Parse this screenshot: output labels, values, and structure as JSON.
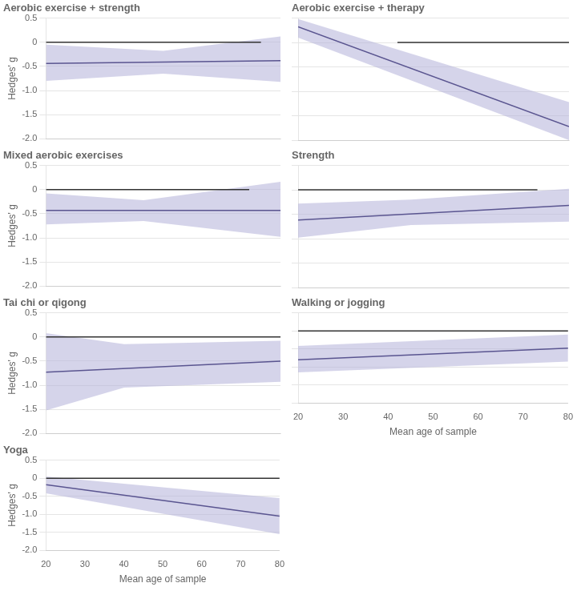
{
  "chart_data": [
    {
      "type": "line",
      "title": "Aerobic exercise + strength",
      "ylabel": "Hedges' g",
      "xlim": [
        20,
        80
      ],
      "ylim": [
        -2.0,
        0.5
      ],
      "xticks": [
        20,
        30,
        40,
        50,
        60,
        70,
        80
      ],
      "yticks": [
        0.5,
        0,
        -0.5,
        {
          "value": -1.0,
          "label": "-1.0"
        },
        -1.5,
        {
          "value": -2.0,
          "label": "-2.0"
        }
      ],
      "grid": "y",
      "tick_labels": "y",
      "series": [
        {
          "type": "band",
          "color": "#b3b0d8",
          "x": [
            20,
            50,
            80
          ],
          "upper": [
            -0.05,
            -0.18,
            0.12
          ],
          "lower": [
            -0.8,
            -0.65,
            -0.82
          ]
        },
        {
          "type": "line",
          "color": "#333333",
          "x": [
            20,
            75
          ],
          "values": [
            0.0,
            0.0
          ]
        },
        {
          "type": "line",
          "color": "#5a5590",
          "x": [
            20,
            80
          ],
          "values": [
            -0.44,
            -0.38
          ]
        }
      ]
    },
    {
      "type": "line",
      "title": "Aerobic exercise + therapy",
      "xlim": [
        20,
        80
      ],
      "ylim": [
        -2.0,
        0.5
      ],
      "xticks": [
        20,
        30,
        40,
        50,
        60,
        70,
        80
      ],
      "yticks": [
        0.5,
        0,
        -0.5,
        {
          "value": -1.0,
          "label": "-1.0"
        },
        -1.5,
        {
          "value": -2.0,
          "label": "-2.0"
        }
      ],
      "grid": "y",
      "tick_labels": false,
      "series": [
        {
          "type": "band",
          "color": "#b3b0d8",
          "x": [
            20,
            80
          ],
          "upper": [
            0.48,
            -1.22
          ],
          "lower": [
            0.1,
            -2.0
          ]
        },
        {
          "type": "line",
          "color": "#333333",
          "x": [
            42,
            80
          ],
          "values": [
            0.0,
            0.0
          ]
        },
        {
          "type": "line",
          "color": "#5a5590",
          "x": [
            20,
            80
          ],
          "values": [
            0.32,
            -1.72
          ]
        }
      ]
    },
    {
      "type": "line",
      "title": "Mixed aerobic exercises",
      "ylabel": "Hedges' g",
      "xlim": [
        20,
        80
      ],
      "ylim": [
        -2.0,
        0.5
      ],
      "xticks": [
        20,
        30,
        40,
        50,
        60,
        70,
        80
      ],
      "yticks": [
        0.5,
        0,
        -0.5,
        {
          "value": -1.0,
          "label": "-1.0"
        },
        -1.5,
        {
          "value": -2.0,
          "label": "-2.0"
        }
      ],
      "grid": "y",
      "tick_labels": "y",
      "series": [
        {
          "type": "band",
          "color": "#b3b0d8",
          "x": [
            20,
            45,
            80
          ],
          "upper": [
            -0.08,
            -0.22,
            0.16
          ],
          "lower": [
            -0.72,
            -0.65,
            -0.98
          ]
        },
        {
          "type": "line",
          "color": "#333333",
          "x": [
            20,
            72
          ],
          "values": [
            0.0,
            0.0
          ]
        },
        {
          "type": "line",
          "color": "#5a5590",
          "x": [
            20,
            80
          ],
          "values": [
            -0.43,
            -0.43
          ]
        }
      ]
    },
    {
      "type": "line",
      "title": "Strength",
      "xlim": [
        20,
        80
      ],
      "ylim": [
        -2.0,
        0.5
      ],
      "xticks": [
        20,
        30,
        40,
        50,
        60,
        70,
        80
      ],
      "yticks": [
        0.5,
        0,
        -0.5,
        {
          "value": -1.0,
          "label": "-1.0"
        },
        -1.5,
        {
          "value": -2.0,
          "label": "-2.0"
        }
      ],
      "grid": "y",
      "tick_labels": false,
      "series": [
        {
          "type": "band",
          "color": "#b3b0d8",
          "x": [
            20,
            45,
            80
          ],
          "upper": [
            -0.28,
            -0.2,
            0.02
          ],
          "lower": [
            -0.98,
            -0.72,
            -0.65
          ]
        },
        {
          "type": "line",
          "color": "#333333",
          "x": [
            20,
            73
          ],
          "values": [
            0.0,
            0.0
          ]
        },
        {
          "type": "line",
          "color": "#5a5590",
          "x": [
            20,
            80
          ],
          "values": [
            -0.62,
            -0.32
          ]
        }
      ]
    },
    {
      "type": "line",
      "title": "Tai chi or qigong",
      "ylabel": "Hedges' g",
      "xlim": [
        20,
        80
      ],
      "ylim": [
        -2.0,
        0.5
      ],
      "xticks": [
        20,
        30,
        40,
        50,
        60,
        70,
        80
      ],
      "yticks": [
        0.5,
        0,
        -0.5,
        {
          "value": -1.0,
          "label": "-1.0"
        },
        -1.5,
        {
          "value": -2.0,
          "label": "-2.0"
        }
      ],
      "grid": "y",
      "tick_labels": "y",
      "series": [
        {
          "type": "band",
          "color": "#b3b0d8",
          "x": [
            20,
            40,
            80
          ],
          "upper": [
            0.08,
            -0.15,
            -0.08
          ],
          "lower": [
            -1.52,
            -1.05,
            -0.93
          ]
        },
        {
          "type": "line",
          "color": "#333333",
          "x": [
            20,
            80
          ],
          "values": [
            0.0,
            0.0
          ]
        },
        {
          "type": "line",
          "color": "#5a5590",
          "x": [
            20,
            80
          ],
          "values": [
            -0.73,
            -0.5
          ]
        }
      ]
    },
    {
      "type": "line",
      "title": "Walking or jogging",
      "xlabel": "Mean age of sample",
      "xlim": [
        20,
        80
      ],
      "ylim": [
        -2.0,
        0.5
      ],
      "xticks": [
        20,
        30,
        40,
        50,
        60,
        70,
        80
      ],
      "yticks": [
        0.5,
        0,
        -0.5,
        {
          "value": -1.0,
          "label": "-1.0"
        },
        -1.5,
        {
          "value": -2.0,
          "label": "-2.0"
        }
      ],
      "grid": "y",
      "tick_labels": "x",
      "series": [
        {
          "type": "band",
          "color": "#b3b0d8",
          "x": [
            20,
            80
          ],
          "upper": [
            -0.42,
            -0.1
          ],
          "lower": [
            -1.15,
            -0.85
          ]
        },
        {
          "type": "line",
          "color": "#333333",
          "x": [
            20,
            80
          ],
          "values": [
            0.0,
            0.0
          ]
        },
        {
          "type": "line",
          "color": "#5a5590",
          "x": [
            20,
            80
          ],
          "values": [
            -0.8,
            -0.48
          ]
        }
      ]
    },
    {
      "type": "line",
      "title": "Yoga",
      "xlabel": "Mean age of sample",
      "ylabel": "Hedges' g",
      "xlim": [
        20,
        80
      ],
      "ylim": [
        -2.0,
        0.5
      ],
      "xticks": [
        20,
        30,
        40,
        50,
        60,
        70,
        80
      ],
      "yticks": [
        0.5,
        0,
        -0.5,
        {
          "value": -1.0,
          "label": "-1.0"
        },
        -1.5,
        {
          "value": -2.0,
          "label": "-2.0"
        }
      ],
      "grid": "y",
      "tick_labels": true,
      "series": [
        {
          "type": "band",
          "color": "#b3b0d8",
          "x": [
            20,
            80
          ],
          "upper": [
            0.05,
            -0.55
          ],
          "lower": [
            -0.42,
            -1.55
          ]
        },
        {
          "type": "line",
          "color": "#333333",
          "x": [
            20,
            80
          ],
          "values": [
            0.0,
            0.0
          ]
        },
        {
          "type": "line",
          "color": "#5a5590",
          "x": [
            20,
            80
          ],
          "values": [
            -0.18,
            -1.05
          ]
        }
      ]
    }
  ]
}
